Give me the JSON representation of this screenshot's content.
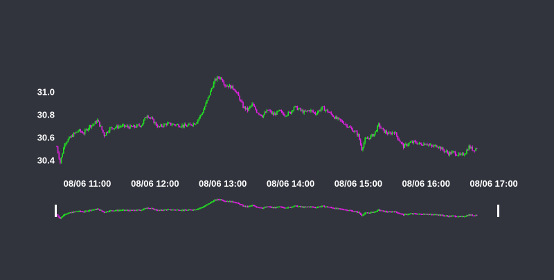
{
  "chart_data": {
    "type": "candlestick",
    "title": "",
    "xlabel": "",
    "ylabel": "",
    "ylim": [
      30.32,
      31.2
    ],
    "y_ticks": [
      "30.4",
      "30.6",
      "30.8",
      "31.0"
    ],
    "x_ticks": [
      "08/06 11:00",
      "08/06 12:00",
      "08/06 13:00",
      "08/06 14:00",
      "08/06 15:00",
      "08/06 16:00",
      "08/06 17:00"
    ],
    "x_range": [
      "08/06 10:33",
      "08/06 17:03"
    ],
    "grid": false,
    "legend": "none",
    "increasing_color": "#22e422",
    "decreasing_color": "#e422e4",
    "background": "#31343d",
    "rangeslider": true,
    "price_path": [
      [
        "08/06 10:33",
        30.52
      ],
      [
        "08/06 10:36",
        30.38
      ],
      [
        "08/06 10:40",
        30.55
      ],
      [
        "08/06 10:43",
        30.58
      ],
      [
        "08/06 10:47",
        30.62
      ],
      [
        "08/06 10:52",
        30.66
      ],
      [
        "08/06 10:57",
        30.64
      ],
      [
        "08/06 11:02",
        30.7
      ],
      [
        "08/06 11:06",
        30.72
      ],
      [
        "08/06 11:09",
        30.75
      ],
      [
        "08/06 11:12",
        30.69
      ],
      [
        "08/06 11:15",
        30.62
      ],
      [
        "08/06 11:20",
        30.68
      ],
      [
        "08/06 11:30",
        30.7
      ],
      [
        "08/06 11:40",
        30.69
      ],
      [
        "08/06 11:48",
        30.71
      ],
      [
        "08/06 11:53",
        30.8
      ],
      [
        "08/06 11:58",
        30.75
      ],
      [
        "08/06 12:03",
        30.69
      ],
      [
        "08/06 12:10",
        30.72
      ],
      [
        "08/06 12:20",
        30.71
      ],
      [
        "08/06 12:28",
        30.7
      ],
      [
        "08/06 12:36",
        30.73
      ],
      [
        "08/06 12:42",
        30.82
      ],
      [
        "08/06 12:46",
        30.92
      ],
      [
        "08/06 12:50",
        31.03
      ],
      [
        "08/06 12:53",
        31.1
      ],
      [
        "08/06 12:56",
        31.13
      ],
      [
        "08/06 12:59",
        31.12
      ],
      [
        "08/06 13:02",
        31.06
      ],
      [
        "08/06 13:06",
        31.05
      ],
      [
        "08/06 13:10",
        31.03
      ],
      [
        "08/06 13:14",
        30.96
      ],
      [
        "08/06 13:18",
        30.87
      ],
      [
        "08/06 13:22",
        30.84
      ],
      [
        "08/06 13:26",
        30.89
      ],
      [
        "08/06 13:30",
        30.83
      ],
      [
        "08/06 13:35",
        30.79
      ],
      [
        "08/06 13:40",
        30.84
      ],
      [
        "08/06 13:45",
        30.8
      ],
      [
        "08/06 13:50",
        30.83
      ],
      [
        "08/06 13:55",
        30.8
      ],
      [
        "08/06 14:00",
        30.82
      ],
      [
        "08/06 14:03",
        30.87
      ],
      [
        "08/06 14:07",
        30.85
      ],
      [
        "08/06 14:12",
        30.82
      ],
      [
        "08/06 14:17",
        30.84
      ],
      [
        "08/06 14:22",
        30.81
      ],
      [
        "08/06 14:28",
        30.86
      ],
      [
        "08/06 14:33",
        30.83
      ],
      [
        "08/06 14:40",
        30.77
      ],
      [
        "08/06 14:47",
        30.73
      ],
      [
        "08/06 14:52",
        30.69
      ],
      [
        "08/06 14:57",
        30.65
      ],
      [
        "08/06 15:00",
        30.62
      ],
      [
        "08/06 15:03",
        30.5
      ],
      [
        "08/06 15:06",
        30.58
      ],
      [
        "08/06 15:10",
        30.6
      ],
      [
        "08/06 15:14",
        30.63
      ],
      [
        "08/06 15:18",
        30.71
      ],
      [
        "08/06 15:22",
        30.66
      ],
      [
        "08/06 15:27",
        30.63
      ],
      [
        "08/06 15:32",
        30.65
      ],
      [
        "08/06 15:36",
        30.58
      ],
      [
        "08/06 15:40",
        30.52
      ],
      [
        "08/06 15:45",
        30.55
      ],
      [
        "08/06 15:50",
        30.56
      ],
      [
        "08/06 15:55",
        30.54
      ],
      [
        "08/06 16:00",
        30.55
      ],
      [
        "08/06 16:05",
        30.52
      ],
      [
        "08/06 16:10",
        30.53
      ],
      [
        "08/06 16:15",
        30.49
      ],
      [
        "08/06 16:20",
        30.46
      ],
      [
        "08/06 16:24",
        30.47
      ],
      [
        "08/06 16:28",
        30.45
      ],
      [
        "08/06 16:31",
        30.44
      ],
      [
        "08/06 16:35",
        30.47
      ],
      [
        "08/06 16:38",
        30.52
      ],
      [
        "08/06 16:42",
        30.49
      ],
      [
        "08/06 16:45",
        30.51
      ]
    ]
  }
}
